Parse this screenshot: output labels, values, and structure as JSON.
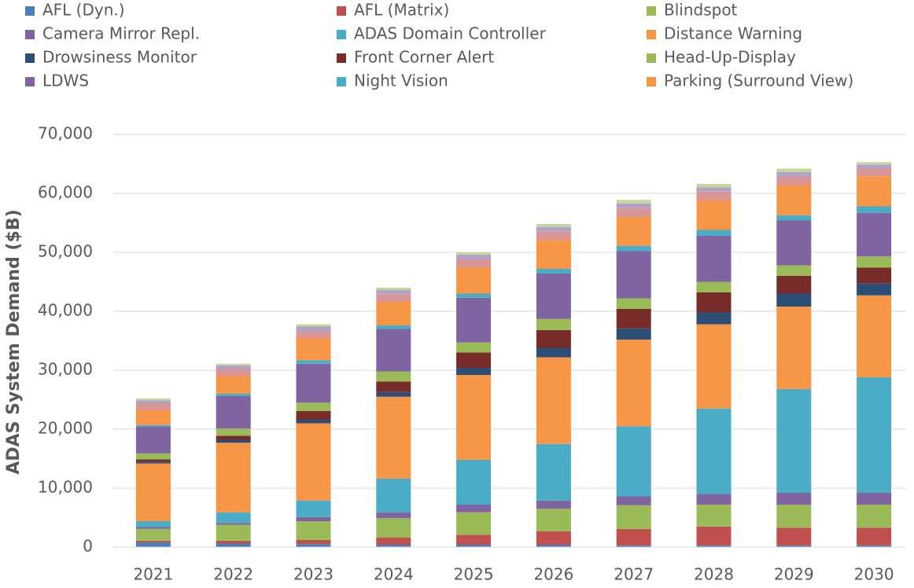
{
  "chart_data": {
    "type": "stacked_bar",
    "y_label": "ADAS System Demand ($B)",
    "categories": [
      "2021",
      "2022",
      "2023",
      "2024",
      "2025",
      "2026",
      "2027",
      "2028",
      "2029",
      "2030"
    ],
    "series": [
      {
        "name": "AFL (Dyn.)",
        "color": "#4a7ebb",
        "values": [
          800,
          600,
          500,
          400,
          400,
          400,
          300,
          300,
          300,
          300
        ]
      },
      {
        "name": "AFL (Matrix)",
        "color": "#c0504d",
        "values": [
          300,
          500,
          700,
          1200,
          1700,
          2300,
          2800,
          3200,
          3000,
          3000
        ]
      },
      {
        "name": "Blindspot",
        "color": "#9bbb59",
        "values": [
          2000,
          2700,
          3200,
          3300,
          3800,
          3800,
          4000,
          3700,
          3900,
          3900
        ]
      },
      {
        "name": "Camera Mirror Repl.",
        "color": "#8064a2",
        "values": [
          300,
          300,
          700,
          1000,
          1300,
          1400,
          1500,
          1800,
          2000,
          2000
        ]
      },
      {
        "name": "ADAS Domain Controller",
        "color": "#4bacc6",
        "values": [
          1000,
          1800,
          2800,
          5700,
          7600,
          9600,
          11900,
          14500,
          17600,
          19600
        ]
      },
      {
        "name": "Distance Warning",
        "color": "#f79646",
        "values": [
          9800,
          11800,
          13100,
          13900,
          14400,
          14700,
          14700,
          14300,
          14000,
          13900
        ]
      },
      {
        "name": "Drowsiness Monitor",
        "color": "#2c4d75",
        "values": [
          300,
          500,
          600,
          800,
          1200,
          1600,
          1900,
          2000,
          2200,
          2000
        ]
      },
      {
        "name": "Front Corner Alert",
        "color": "#772c2a",
        "values": [
          400,
          700,
          1500,
          1800,
          2600,
          3000,
          3300,
          3400,
          3000,
          2700
        ]
      },
      {
        "name": "Head-Up-Display",
        "color": "#9bbb59",
        "values": [
          1000,
          1200,
          1400,
          1700,
          1700,
          1900,
          1800,
          1800,
          1800,
          1900
        ]
      },
      {
        "name": "LDWS",
        "color": "#8064a2",
        "values": [
          4500,
          5500,
          6600,
          7200,
          7600,
          7700,
          8000,
          7800,
          7600,
          7400
        ]
      },
      {
        "name": "Night Vision",
        "color": "#4bacc6",
        "values": [
          300,
          400,
          600,
          600,
          700,
          800,
          900,
          1000,
          900,
          1100
        ]
      },
      {
        "name": "Parking (Surround View)",
        "color": "#f79646",
        "values": [
          2500,
          3000,
          3700,
          4000,
          4400,
          4900,
          4900,
          5000,
          5100,
          5100
        ]
      },
      {
        "color": "#d99694",
        "values": [
          1200,
          1200,
          1200,
          1300,
          1400,
          1400,
          1500,
          1500,
          1400,
          1300
        ]
      },
      {
        "color": "#b3a2c7",
        "values": [
          500,
          600,
          800,
          700,
          800,
          800,
          800,
          700,
          800,
          700
        ]
      },
      {
        "color": "#c3d69b",
        "values": [
          300,
          300,
          400,
          400,
          400,
          500,
          600,
          600,
          600,
          400
        ]
      }
    ],
    "ylim": [
      0,
      70000
    ],
    "yticks": [
      0,
      {
        "value": 10000,
        "label": "10,000"
      },
      {
        "value": 20000,
        "label": "20,000"
      },
      {
        "value": 30000,
        "label": "30,000"
      },
      {
        "value": 40000,
        "label": "40,000"
      },
      {
        "value": 50000,
        "label": "50,000"
      },
      {
        "value": 60000,
        "label": "60,000"
      },
      {
        "value": 70000,
        "label": "70,000"
      }
    ],
    "grid": true,
    "legend": "top"
  }
}
